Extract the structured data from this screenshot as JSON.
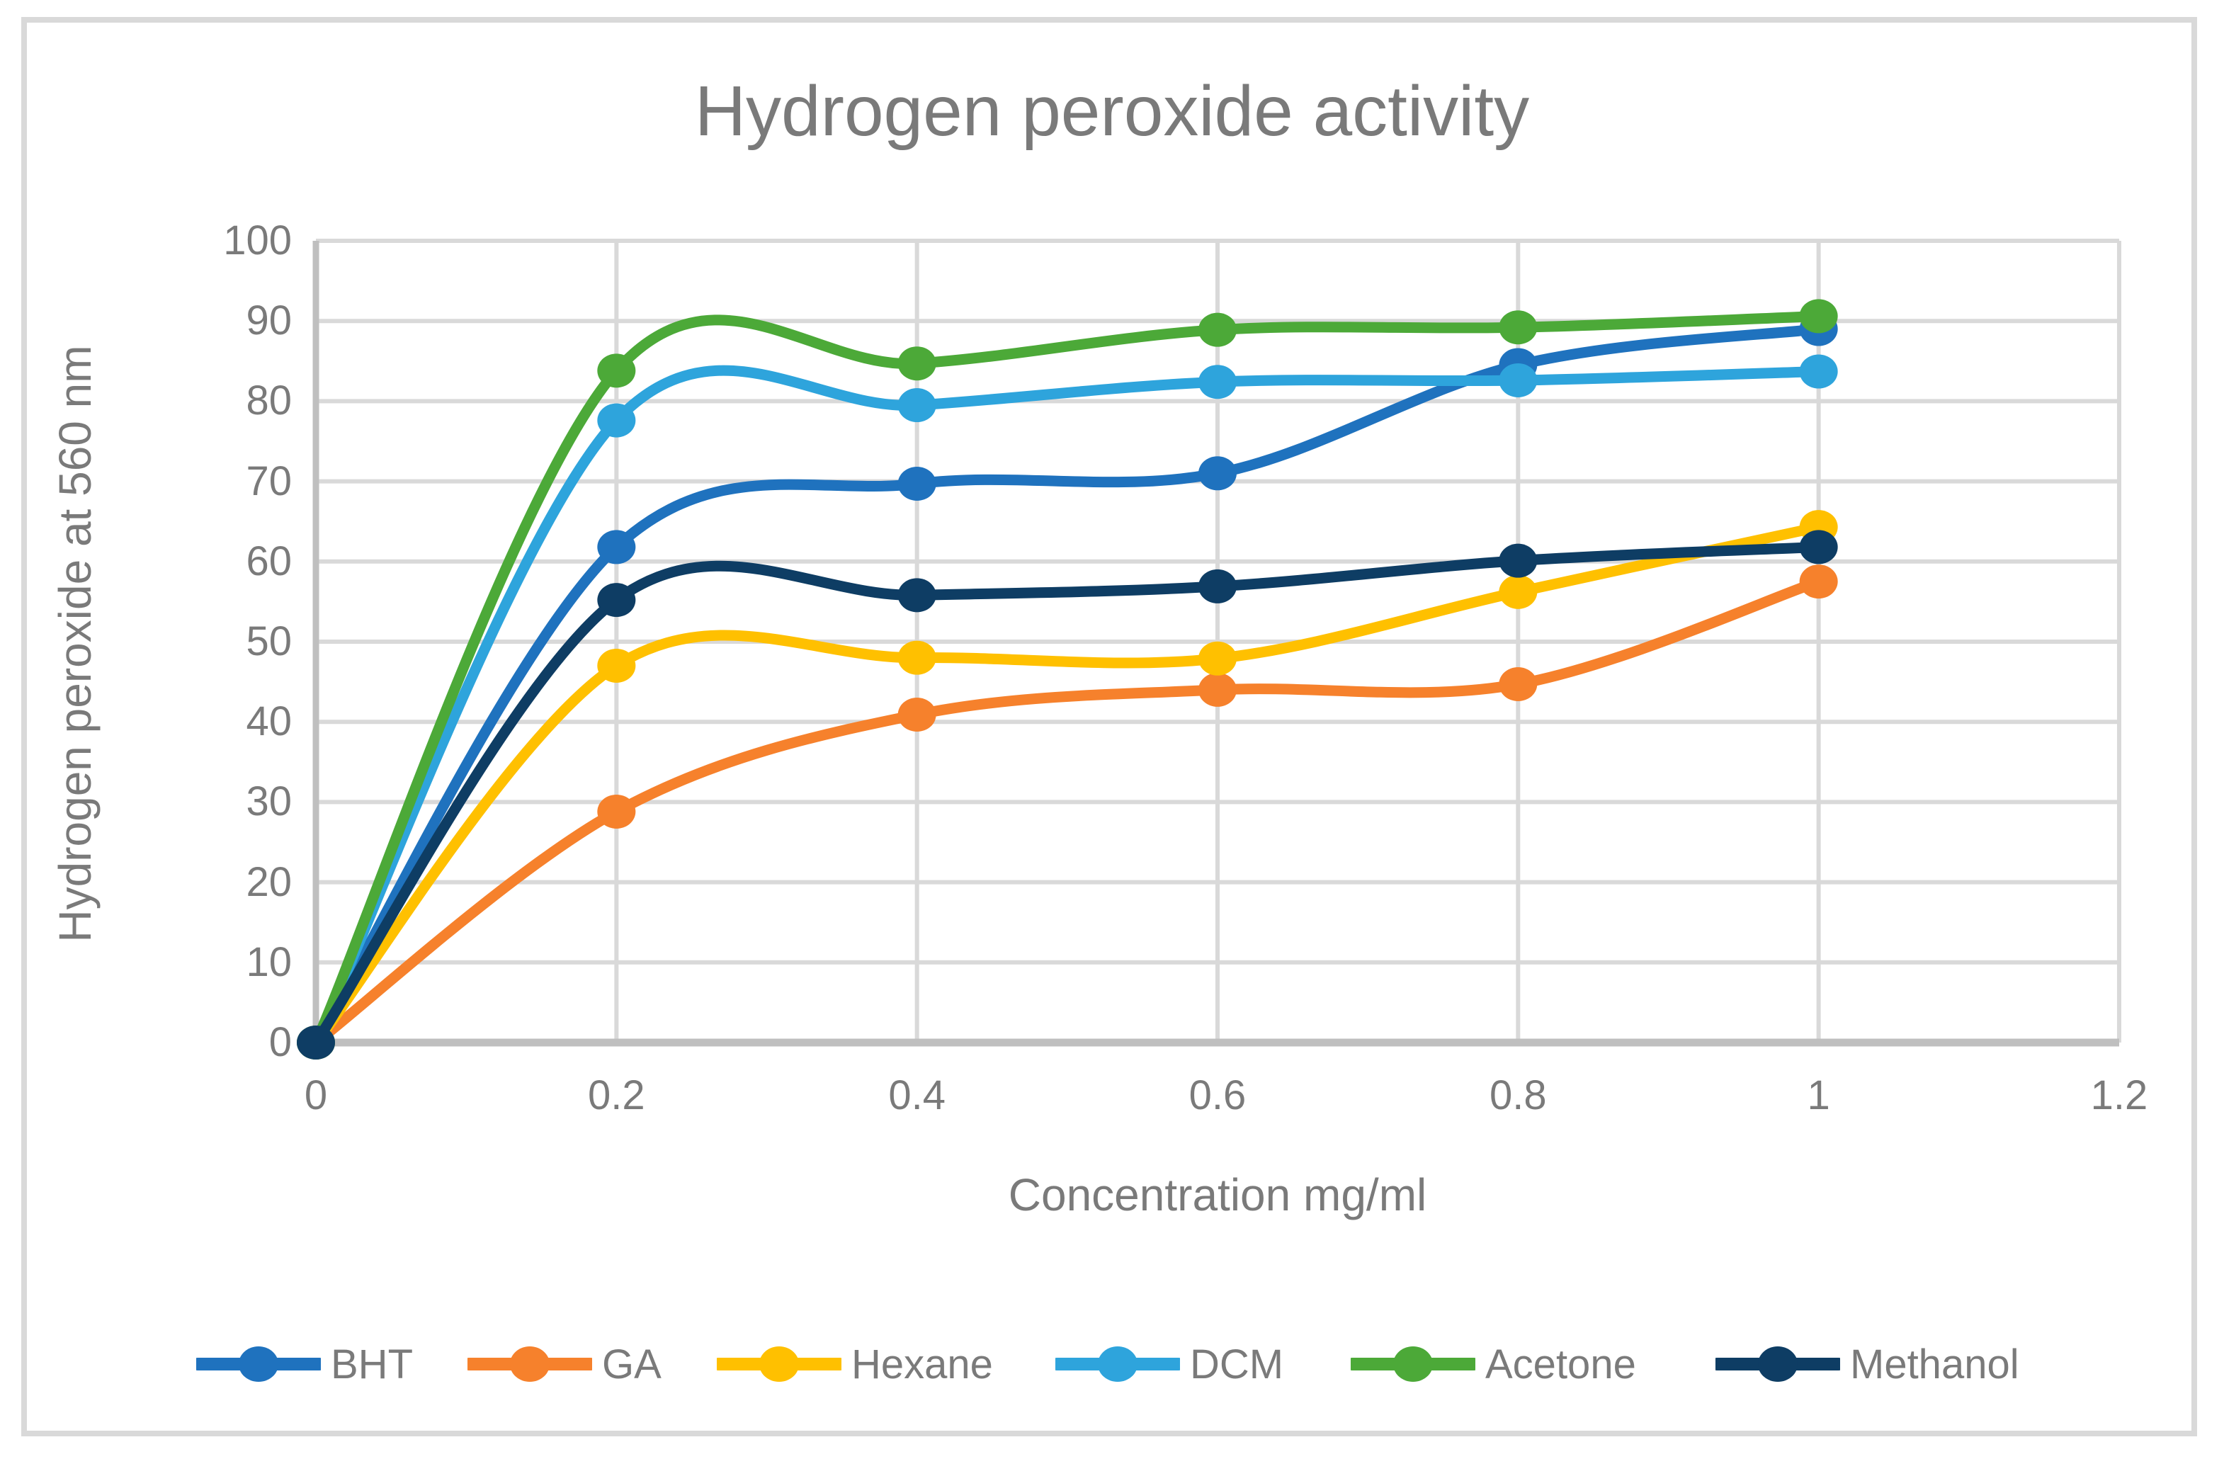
{
  "title": "Hydrogen peroxide activity",
  "chart_data": {
    "type": "line",
    "title": "Hydrogen peroxide activity",
    "xlabel": "Concentration mg/ml",
    "ylabel": "Hydrogen peroxide at 560 nm",
    "x": [
      0,
      0.2,
      0.4,
      0.6,
      0.8,
      1
    ],
    "xlim": [
      0,
      1.2
    ],
    "ylim": [
      0,
      100
    ],
    "x_ticks": [
      0,
      0.2,
      0.4,
      0.6,
      0.8,
      1,
      1.2
    ],
    "x_tick_labels": [
      "0",
      "0.2",
      "0.4",
      "0.6",
      "0.8",
      "1",
      "1.2"
    ],
    "y_ticks": [
      0,
      10,
      20,
      30,
      40,
      50,
      60,
      70,
      80,
      90,
      100
    ],
    "y_tick_labels": [
      "0",
      "10",
      "20",
      "30",
      "40",
      "50",
      "60",
      "70",
      "80",
      "90",
      "100"
    ],
    "grid": true,
    "line_style": "smoothed-with-round-markers",
    "legend_position": "bottom",
    "series": [
      {
        "name": "BHT",
        "color": "#1F72BE",
        "values": [
          0,
          61.8,
          69.7,
          71.0,
          84.5,
          89.0
        ]
      },
      {
        "name": "GA",
        "color": "#F6812C",
        "values": [
          0,
          28.8,
          40.9,
          44.0,
          44.7,
          57.5
        ]
      },
      {
        "name": "Hexane",
        "color": "#FFC000",
        "values": [
          0,
          47.0,
          48.0,
          47.9,
          56.2,
          64.3
        ]
      },
      {
        "name": "DCM",
        "color": "#2EA4DC",
        "values": [
          0,
          77.6,
          79.5,
          82.4,
          82.6,
          83.7
        ]
      },
      {
        "name": "Acetone",
        "color": "#4CA938",
        "values": [
          0,
          83.8,
          84.7,
          88.9,
          89.2,
          90.6
        ]
      },
      {
        "name": "Methanol",
        "color": "#0E3D64",
        "values": [
          0,
          55.2,
          55.8,
          56.9,
          60.1,
          61.8
        ]
      }
    ]
  },
  "styling": {
    "background": "#FFFFFF",
    "border_color": "#D9D9D9",
    "gridline_color": "#D9D9D9",
    "axis_line_color": "#BFBFBF",
    "text_color": "#7A7A7A"
  }
}
